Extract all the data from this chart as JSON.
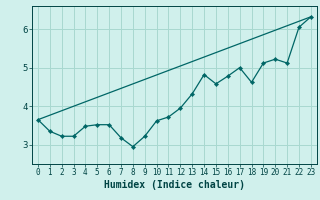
{
  "xlabel": "Humidex (Indice chaleur)",
  "ylabel": "",
  "bg_color": "#d0f0ec",
  "grid_color": "#a8d8d0",
  "line_color": "#006666",
  "xlim": [
    -0.5,
    23.5
  ],
  "ylim": [
    2.5,
    6.6
  ],
  "yticks": [
    3,
    4,
    5,
    6
  ],
  "xticks": [
    0,
    1,
    2,
    3,
    4,
    5,
    6,
    7,
    8,
    9,
    10,
    11,
    12,
    13,
    14,
    15,
    16,
    17,
    18,
    19,
    20,
    21,
    22,
    23
  ],
  "smooth_x": [
    0,
    1,
    2,
    3,
    4,
    5,
    6,
    7,
    8,
    9,
    10,
    11,
    12,
    13,
    14,
    15,
    16,
    17,
    18,
    19,
    20,
    21,
    22,
    23
  ],
  "smooth_y": [
    3.65,
    3.35,
    3.22,
    3.22,
    3.48,
    3.52,
    3.52,
    3.18,
    2.95,
    3.22,
    3.62,
    3.72,
    3.95,
    4.32,
    4.82,
    4.58,
    4.78,
    5.0,
    4.62,
    5.12,
    5.22,
    5.12,
    6.05,
    6.32
  ],
  "line2_x": [
    0,
    23
  ],
  "line2_y": [
    3.65,
    6.32
  ],
  "font_color": "#004444",
  "tick_fontsize": 5.5,
  "xlabel_fontsize": 7
}
